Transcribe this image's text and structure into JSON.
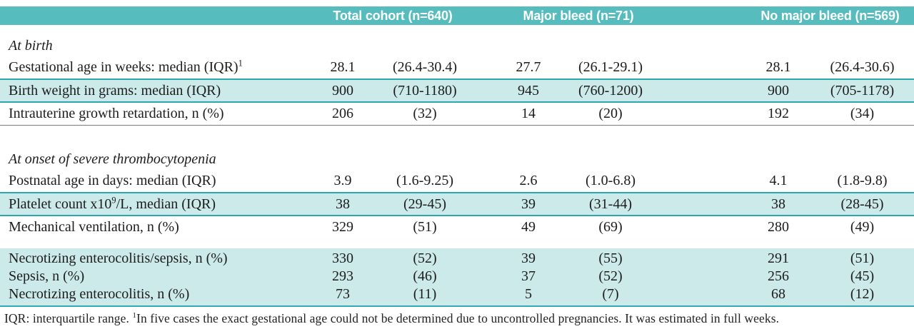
{
  "table": {
    "columns": [
      {
        "label": "Total cohort (n=640)"
      },
      {
        "label": "Major bleed (n=71)"
      },
      {
        "label": "No major bleed (n=569)"
      }
    ],
    "rows": [
      {
        "type": "section",
        "label": [
          {
            "t": "At birth"
          }
        ]
      },
      {
        "type": "data",
        "style": "plain",
        "label": [
          {
            "t": "Gestational age in weeks: median (IQR)"
          },
          {
            "s": "1"
          }
        ],
        "cells": [
          "28.1",
          "(26.4-30.4)",
          "27.7",
          "(26.1-29.1)",
          "28.1",
          "(26.4-30.6)"
        ]
      },
      {
        "type": "data",
        "style": "highlight",
        "label": [
          {
            "t": "Birth weight in grams: median (IQR)"
          }
        ],
        "cells": [
          "900",
          "(710-1180)",
          "945",
          "(760-1200)",
          "900",
          "(705-1178)"
        ]
      },
      {
        "type": "data",
        "style": "grayline",
        "label": [
          {
            "t": "Intrauterine growth retardation, n (%)"
          }
        ],
        "cells": [
          "206",
          "(32)",
          "14",
          "(20)",
          "192",
          "(34)"
        ]
      },
      {
        "type": "section",
        "style": "second",
        "label": [
          {
            "t": "At onset of severe thrombocytopenia"
          }
        ]
      },
      {
        "type": "data",
        "style": "plain",
        "label": [
          {
            "t": "Postnatal age in days: median (IQR)"
          }
        ],
        "cells": [
          "3.9",
          "(1.6-9.25)",
          "2.6",
          "(1.0-6.8)",
          "4.1",
          "(1.8-9.8)"
        ]
      },
      {
        "type": "data",
        "style": "highlight",
        "label": [
          {
            "t": "Platelet count x10"
          },
          {
            "s": "9"
          },
          {
            "t": "/L, median (IQR)"
          }
        ],
        "cells": [
          "38",
          "(29-45)",
          "39",
          "(31-44)",
          "38",
          "(28-45)"
        ]
      },
      {
        "type": "data",
        "style": "plain",
        "label": [
          {
            "t": "Mechanical ventilation, n (%)"
          }
        ],
        "cells": [
          "329",
          "(51)",
          "49",
          "(69)",
          "280",
          "(49)"
        ]
      },
      {
        "type": "block",
        "rows": [
          {
            "label": [
              {
                "t": "Necrotizing enterocolitis/sepsis, n (%)"
              }
            ],
            "cells": [
              "330",
              "(52)",
              "39",
              "(55)",
              "291",
              "(51)"
            ]
          },
          {
            "label": [
              {
                "t": "Sepsis, n (%)"
              }
            ],
            "cells": [
              "293",
              "(46)",
              "37",
              "(52)",
              "256",
              "(45)"
            ]
          },
          {
            "label": [
              {
                "t": "Necrotizing enterocolitis, n (%)"
              }
            ],
            "cells": [
              "73",
              "(11)",
              "5",
              "(7)",
              "68",
              "(12)"
            ]
          }
        ]
      }
    ]
  },
  "footnote": [
    {
      "t": "IQR: interquartile range. "
    },
    {
      "s": "1"
    },
    {
      "t": "In five cases the exact gestational age could not be determined due to uncontrolled pregnancies. It was estimated in full weeks."
    }
  ],
  "colors": {
    "header_teal": "#56bcbe",
    "highlight_bg": "#cdeaeb",
    "highlight_border": "#2ea6ad"
  }
}
